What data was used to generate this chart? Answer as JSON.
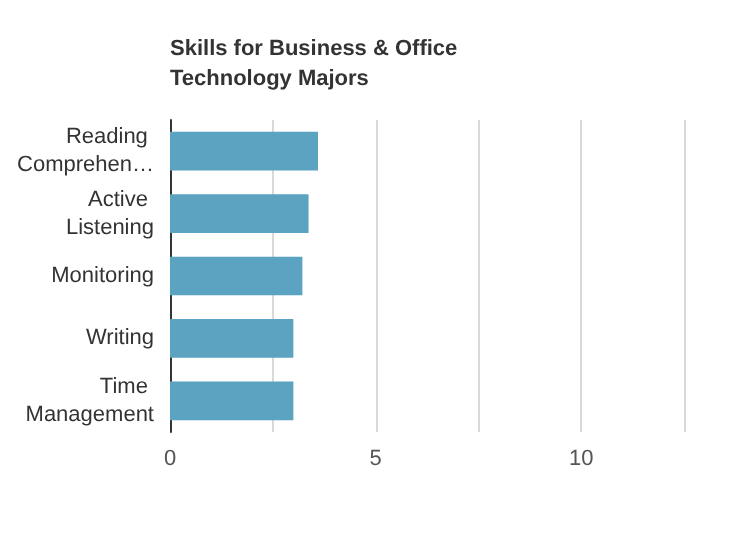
{
  "chart_data": {
    "type": "bar",
    "orientation": "horizontal",
    "title": "Skills for Business & Office Technology Majors",
    "categories": [
      "Reading Comprehen…",
      "Active Listening",
      "Monitoring",
      "Writing",
      "Time Management"
    ],
    "values": [
      3.6,
      3.37,
      3.22,
      3.0,
      3.0
    ],
    "color": "#5ba3c0",
    "xlim": [
      0,
      12.5
    ],
    "xticks": [
      0,
      {
        "value": 2.5,
        "label": null
      },
      5,
      {
        "value": 7.5,
        "label": null
      },
      10,
      {
        "value": 12.5,
        "label": null
      }
    ],
    "grid": "x"
  }
}
